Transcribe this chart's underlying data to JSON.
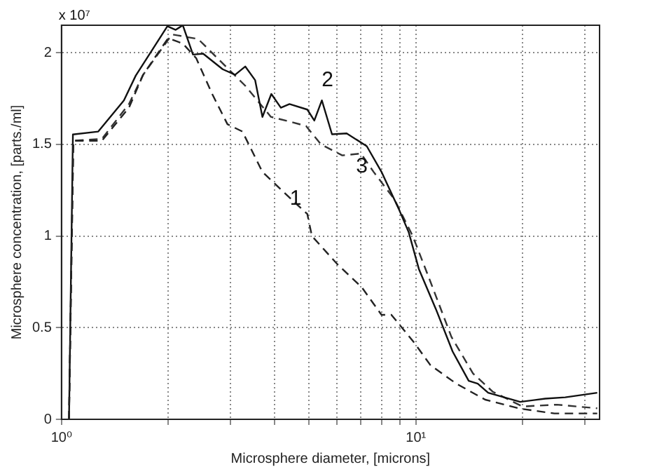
{
  "chart_data": {
    "type": "line",
    "xlabel": "Microsphere diameter, [microns]",
    "ylabel": "Microsphere concentration, [parts./ml]",
    "annotations": [
      "x 10⁷"
    ],
    "xlim": [
      1,
      33
    ],
    "ylim": [
      0,
      2.15
    ],
    "xticks": [
      {
        "value": 1,
        "label": "10⁰"
      },
      {
        "value": 2,
        "label": null
      },
      {
        "value": 3,
        "label": null
      },
      {
        "value": 4,
        "label": null
      },
      {
        "value": 5,
        "label": null
      },
      {
        "value": 6,
        "label": null
      },
      {
        "value": 7,
        "label": null
      },
      {
        "value": 8,
        "label": null
      },
      {
        "value": 9,
        "label": null
      },
      {
        "value": 10,
        "label": "10¹"
      },
      {
        "value": 20,
        "label": null
      },
      {
        "value": 30,
        "label": null
      }
    ],
    "yticks": [
      0,
      0.5,
      1,
      1.5,
      2
    ],
    "log": "x",
    "grid": true,
    "legend": false,
    "marker": "none",
    "series": [
      {
        "name": "1",
        "color": "#222222",
        "line_style": "dashed",
        "x": [
          1.05,
          1.08,
          1.3,
          1.55,
          1.7,
          2.0,
          2.2,
          2.4,
          2.67,
          2.94,
          3.24,
          3.69,
          4.18,
          4.94,
          5.09,
          5.98,
          7.04,
          8.0,
          8.53,
          9.88,
          11.0,
          13.0,
          15.7,
          19.7,
          24.6,
          32.5
        ],
        "values": [
          0,
          1.52,
          1.52,
          1.7,
          1.88,
          2.08,
          2.05,
          1.97,
          1.77,
          1.61,
          1.57,
          1.35,
          1.25,
          1.12,
          1.0,
          0.85,
          0.72,
          0.57,
          0.57,
          0.42,
          0.295,
          0.195,
          0.107,
          0.058,
          0.032,
          0.032
        ]
      },
      {
        "name": "2",
        "color": "#111111",
        "line_style": "solid",
        "x": [
          1.05,
          1.077,
          1.27,
          1.5,
          1.62,
          1.99,
          2.1,
          2.2,
          2.35,
          2.51,
          2.85,
          3.09,
          3.3,
          3.52,
          3.69,
          3.91,
          4.16,
          4.4,
          4.94,
          5.17,
          5.43,
          5.8,
          6.38,
          7.27,
          8.0,
          8.94,
          9.55,
          10.2,
          11.4,
          12.7,
          14.1,
          14.95,
          16.0,
          19.7,
          23.2,
          26.4,
          32.5
        ],
        "values": [
          0,
          1.554,
          1.57,
          1.74,
          1.875,
          2.145,
          2.125,
          2.15,
          1.99,
          1.995,
          1.91,
          1.88,
          1.925,
          1.85,
          1.65,
          1.775,
          1.7,
          1.72,
          1.69,
          1.63,
          1.74,
          1.555,
          1.56,
          1.49,
          1.35,
          1.15,
          1.02,
          0.82,
          0.6,
          0.37,
          0.21,
          0.195,
          0.145,
          0.095,
          0.113,
          0.12,
          0.145
        ]
      },
      {
        "name": "3",
        "color": "#333333",
        "line_style": "dashed",
        "x": [
          1.05,
          1.08,
          1.3,
          1.55,
          1.7,
          2.05,
          2.43,
          3.3,
          3.9,
          4.5,
          4.9,
          5.4,
          6.2,
          7.0,
          7.6,
          8.7,
          9.8,
          11.0,
          12.6,
          14.5,
          16.5,
          20.0,
          25.0,
          32.5
        ],
        "values": [
          0,
          1.52,
          1.53,
          1.72,
          1.88,
          2.1,
          2.075,
          1.82,
          1.65,
          1.62,
          1.6,
          1.5,
          1.44,
          1.45,
          1.35,
          1.2,
          1.0,
          0.75,
          0.45,
          0.25,
          0.15,
          0.07,
          0.08,
          0.06
        ]
      }
    ]
  }
}
